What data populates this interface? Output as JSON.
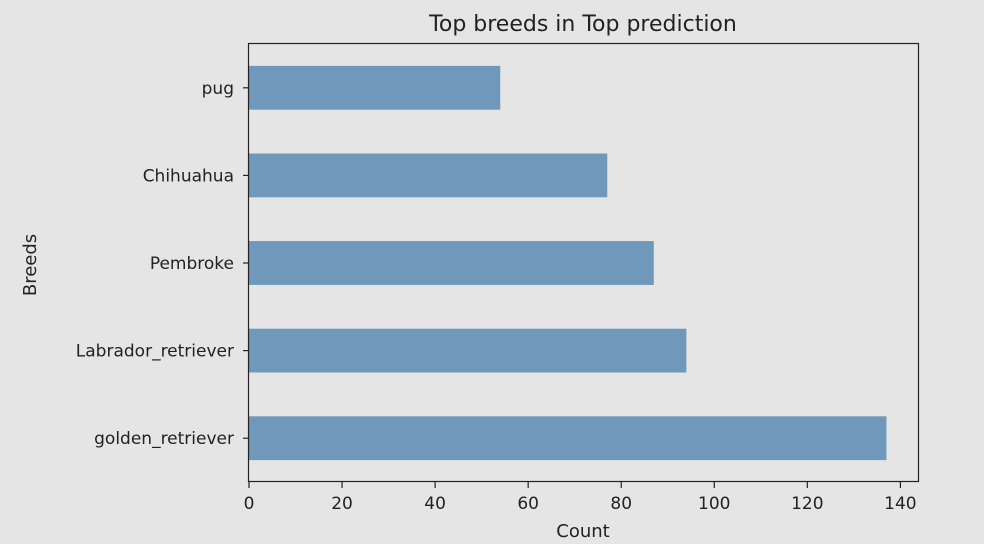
{
  "chart_data": {
    "type": "bar",
    "orientation": "horizontal",
    "title": "Top breeds in Top prediction",
    "xlabel": "Count",
    "ylabel": "Breeds",
    "categories": [
      "golden_retriever",
      "Labrador_retriever",
      "Pembroke",
      "Chihuahua",
      "pug"
    ],
    "values": [
      137,
      94,
      87,
      77,
      54
    ],
    "xlim": [
      0,
      144
    ],
    "xticks": [
      0,
      20,
      40,
      60,
      80,
      100,
      120,
      140
    ],
    "grid": false,
    "legend": "none",
    "bar_color": "#6f98bb",
    "background_color": "#e5e5e5"
  }
}
